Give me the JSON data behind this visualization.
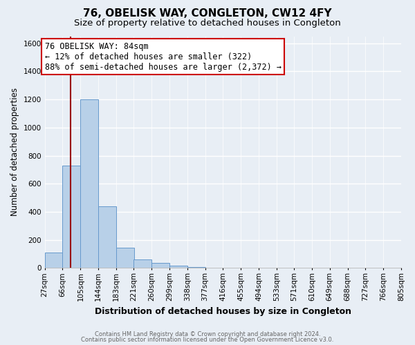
{
  "title": "76, OBELISK WAY, CONGLETON, CW12 4FY",
  "subtitle": "Size of property relative to detached houses in Congleton",
  "xlabel": "Distribution of detached houses by size in Congleton",
  "ylabel": "Number of detached properties",
  "bar_left_edges": [
    27,
    66,
    105,
    144,
    183,
    221,
    260,
    299,
    338,
    377,
    416,
    455,
    494,
    533,
    571,
    610,
    649,
    688,
    727,
    766
  ],
  "bar_heights": [
    110,
    730,
    1200,
    440,
    145,
    60,
    35,
    15,
    8,
    0,
    0,
    0,
    0,
    0,
    0,
    0,
    0,
    0,
    0,
    0
  ],
  "bin_width": 39,
  "x_tick_labels": [
    "27sqm",
    "66sqm",
    "105sqm",
    "144sqm",
    "183sqm",
    "221sqm",
    "260sqm",
    "299sqm",
    "338sqm",
    "377sqm",
    "416sqm",
    "455sqm",
    "494sqm",
    "533sqm",
    "571sqm",
    "610sqm",
    "649sqm",
    "688sqm",
    "727sqm",
    "766sqm",
    "805sqm"
  ],
  "x_tick_positions": [
    27,
    66,
    105,
    144,
    183,
    221,
    260,
    299,
    338,
    377,
    416,
    455,
    494,
    533,
    571,
    610,
    649,
    688,
    727,
    766,
    805
  ],
  "ylim": [
    0,
    1650
  ],
  "yticks": [
    0,
    200,
    400,
    600,
    800,
    1000,
    1200,
    1400,
    1600
  ],
  "bar_color": "#b8d0e8",
  "bar_edge_color": "#6699cc",
  "bg_color": "#e8eef5",
  "plot_bg_color": "#e8eef5",
  "grid_color": "#ffffff",
  "vline_x": 84,
  "vline_color": "#990000",
  "annotation_line1": "76 OBELISK WAY: 84sqm",
  "annotation_line2": "← 12% of detached houses are smaller (322)",
  "annotation_line3": "88% of semi-detached houses are larger (2,372) →",
  "footer_line1": "Contains HM Land Registry data © Crown copyright and database right 2024.",
  "footer_line2": "Contains public sector information licensed under the Open Government Licence v3.0.",
  "title_fontsize": 11,
  "subtitle_fontsize": 9.5,
  "xlabel_fontsize": 9,
  "ylabel_fontsize": 8.5,
  "tick_fontsize": 7.5,
  "annot_fontsize": 8.5
}
